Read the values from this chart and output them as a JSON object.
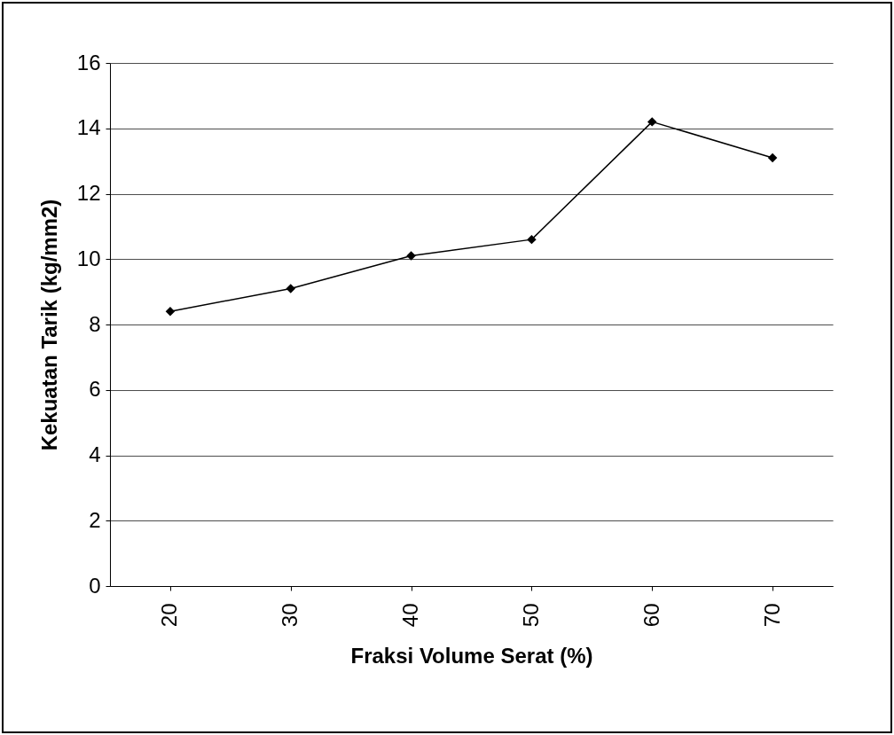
{
  "chart_data": {
    "type": "line",
    "xlabel": "Fraksi Volume Serat (%)",
    "ylabel": "Kekuatan Tarik (kg/mm2)",
    "categories": [
      "20",
      "30",
      "40",
      "50",
      "60",
      "70"
    ],
    "series": [
      {
        "color": "#000000",
        "values": [
          8.4,
          9.1,
          10.1,
          10.6,
          14.2,
          13.1
        ]
      }
    ],
    "ylim": [
      0,
      16
    ],
    "yticks": [
      0,
      2,
      4,
      6,
      8,
      10,
      12,
      14,
      16
    ],
    "grid": "y",
    "marker": "diamond",
    "line_style": "solid"
  }
}
